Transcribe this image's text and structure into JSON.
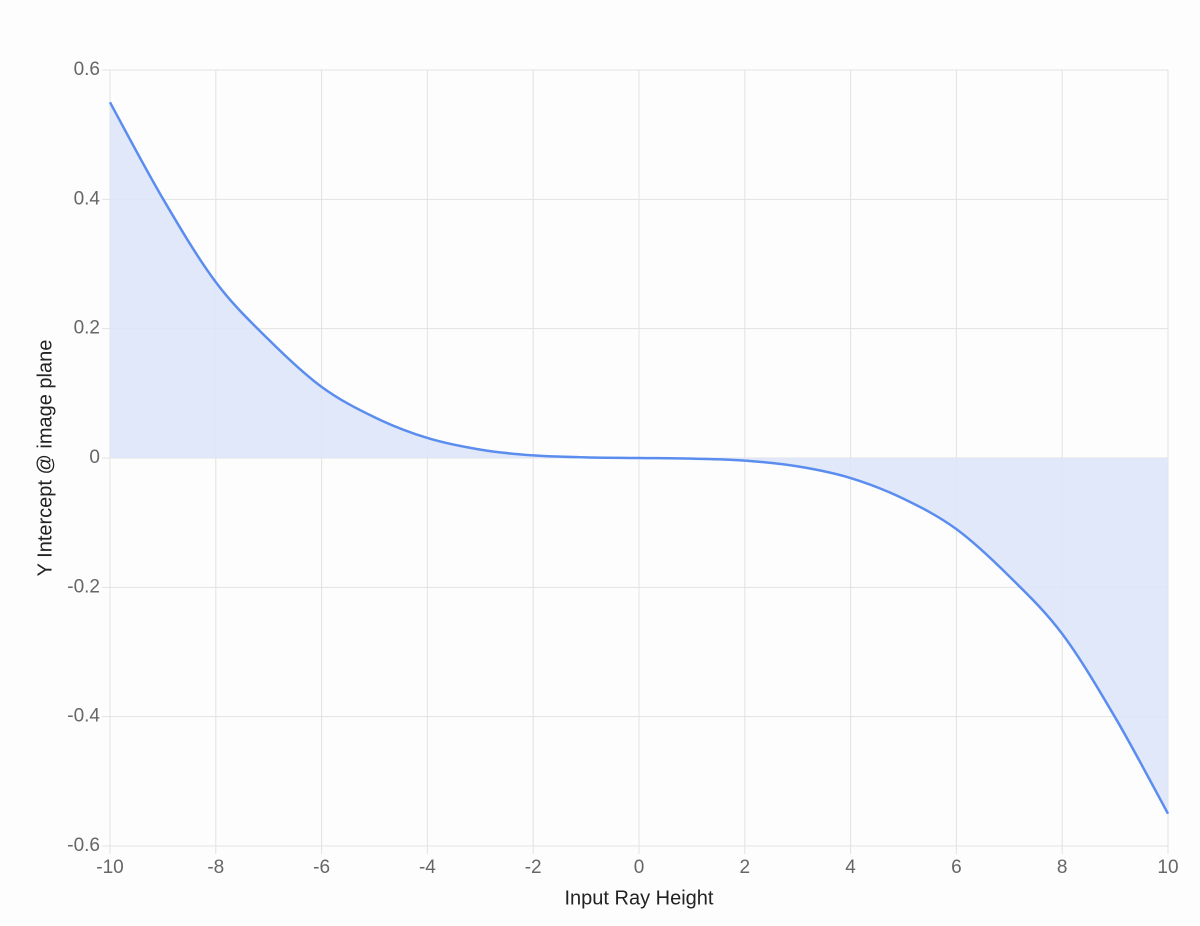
{
  "chart_data": {
    "type": "area",
    "x_label": "Input Ray Height",
    "y_label": "Y Intercept @ image plane",
    "x": [
      -10,
      -9,
      -8,
      -7,
      -6,
      -5,
      -4,
      -3,
      -2,
      -1,
      0,
      1,
      2,
      3,
      4,
      5,
      6,
      7,
      8,
      9,
      10
    ],
    "values": [
      0.55,
      0.401,
      0.272,
      0.183,
      0.11,
      0.063,
      0.031,
      0.013,
      0.004,
      0.001,
      0,
      -0.001,
      -0.004,
      -0.013,
      -0.031,
      -0.063,
      -0.11,
      -0.183,
      -0.272,
      -0.401,
      -0.55
    ],
    "color": "#5b8def",
    "fill_color": "#dde6f8",
    "xlim": [
      -10,
      10
    ],
    "xticks": [
      -10,
      -8,
      -6,
      -4,
      -2,
      0,
      2,
      4,
      6,
      8,
      10
    ],
    "ylim": [
      -0.6,
      0.6
    ],
    "yticks": [
      -0.6,
      -0.4,
      -0.2,
      0,
      0.2,
      0.4,
      0.6
    ],
    "grid": true
  }
}
